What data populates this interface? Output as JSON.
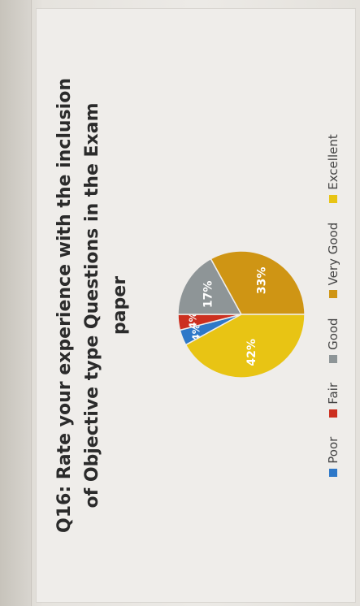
{
  "chart_data": {
    "type": "pie",
    "title_lines": [
      "Q16: Rate your experience with the inclusion",
      "of Objective type Questions in the Exam",
      "paper"
    ],
    "categories": [
      "Poor",
      "Fair",
      "Good",
      "Very Good",
      "Excellent"
    ],
    "values": [
      4,
      4,
      17,
      33,
      42
    ],
    "data_labels": [
      "4%",
      "4%",
      "17%",
      "33%",
      "42%"
    ],
    "colors": [
      "#2e78c8",
      "#cc2f1f",
      "#8e9597",
      "#cf9514",
      "#e8c414"
    ],
    "legend_position": "bottom"
  }
}
